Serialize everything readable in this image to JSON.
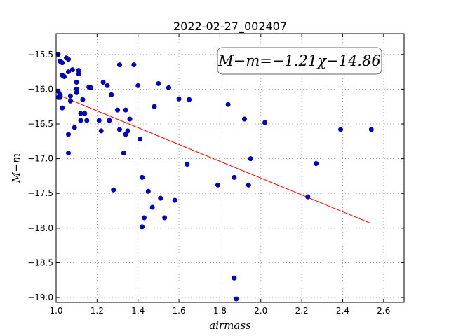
{
  "chart_data": {
    "type": "scatter",
    "title": "2022-02-27_002407",
    "xlabel": "airmass",
    "ylabel": "M−m",
    "xlim": [
      1.0,
      2.7
    ],
    "ylim": [
      -19.07,
      -15.2
    ],
    "y_inverted": true,
    "grid": true,
    "x_ticks": [
      1.0,
      1.2,
      1.4,
      1.6,
      1.8,
      2.0,
      2.2,
      2.4,
      2.6
    ],
    "x_tick_labels": [
      "1.0",
      "1.2",
      "1.4",
      "1.6",
      "1.8",
      "2.0",
      "2.2",
      "2.4",
      "2.6"
    ],
    "y_ticks": [
      -15.5,
      -16.0,
      -16.5,
      -17.0,
      -17.5,
      -18.0,
      -18.5,
      -19.0
    ],
    "y_tick_labels": [
      "−15.5",
      "−16.0",
      "−16.5",
      "−17.0",
      "−17.5",
      "−18.0",
      "−18.5",
      "−19.0"
    ],
    "annotation": "M−m=−1.21χ−14.86",
    "point_color": "#0000cc",
    "fit_color": "#ff0000",
    "fit": {
      "slope": -1.21,
      "intercept": -14.86,
      "x_range": [
        1.0,
        2.53
      ]
    },
    "points": {
      "x": [
        1.01,
        1.01,
        1.01,
        1.02,
        1.02,
        1.02,
        1.03,
        1.03,
        1.03,
        1.04,
        1.05,
        1.06,
        1.06,
        1.07,
        1.08,
        1.09,
        1.1,
        1.1,
        1.1,
        1.11,
        1.11,
        1.12,
        1.12,
        1.13,
        1.14,
        1.15,
        1.16,
        1.17,
        1.06,
        1.06,
        1.07,
        1.02,
        1.21,
        1.22,
        1.23,
        1.25,
        1.26,
        1.27,
        1.28,
        1.3,
        1.31,
        1.31,
        1.33,
        1.34,
        1.34,
        1.35,
        1.36,
        1.38,
        1.4,
        1.41,
        1.42,
        1.42,
        1.43,
        1.45,
        1.47,
        1.48,
        1.5,
        1.51,
        1.53,
        1.55,
        1.58,
        1.6,
        1.64,
        1.65,
        1.79,
        1.84,
        1.87,
        1.87,
        1.88,
        1.92,
        1.94,
        1.95,
        2.02,
        2.23,
        2.27,
        2.39,
        2.54
      ],
      "y": [
        -15.5,
        -16.03,
        -16.12,
        -15.6,
        -16.08,
        -16.12,
        -15.62,
        -15.8,
        -16.27,
        -15.82,
        -15.55,
        -15.57,
        -15.75,
        -16.1,
        -15.72,
        -16.55,
        -16.0,
        -16.05,
        -15.9,
        -15.78,
        -15.73,
        -16.35,
        -16.45,
        -16.15,
        -16.35,
        -16.45,
        -15.97,
        -15.98,
        -16.92,
        -16.65,
        -16.17,
        -16.1,
        -16.45,
        -16.6,
        -15.9,
        -15.95,
        -16.45,
        -16.08,
        -17.45,
        -16.3,
        -15.65,
        -16.58,
        -16.92,
        -16.3,
        -16.65,
        -16.6,
        -16.43,
        -15.65,
        -15.95,
        -16.72,
        -17.27,
        -17.98,
        -17.85,
        -17.47,
        -17.7,
        -16.25,
        -15.92,
        -17.57,
        -17.85,
        -15.98,
        -17.6,
        -16.14,
        -17.08,
        -16.15,
        -17.38,
        -16.22,
        -17.27,
        -18.72,
        -19.02,
        -16.43,
        -17.38,
        -17.0,
        -16.48,
        -17.55,
        -17.07,
        -16.58,
        -16.58
      ]
    }
  }
}
